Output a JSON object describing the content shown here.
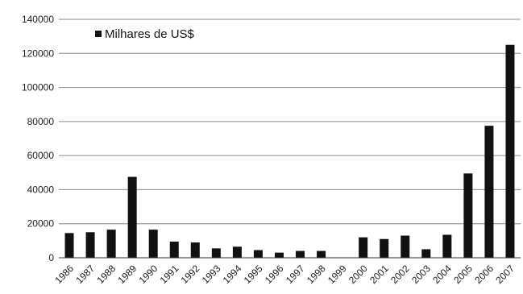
{
  "chart_data": {
    "type": "bar",
    "categories": [
      "1986",
      "1987",
      "1988",
      "1989",
      "1990",
      "1991",
      "1992",
      "1993",
      "1994",
      "1995",
      "1996",
      "1997",
      "1998",
      "1999",
      "2000",
      "2001",
      "2002",
      "2003",
      "2004",
      "2005",
      "2006",
      "2007"
    ],
    "series": [
      {
        "name": "Milhares de US$",
        "values": [
          14500,
          15000,
          16500,
          47500,
          16500,
          9500,
          9000,
          5500,
          6500,
          4500,
          3000,
          4000,
          4000,
          0,
          12000,
          11000,
          13000,
          5000,
          13500,
          49500,
          77500,
          125000
        ]
      }
    ],
    "ylim": [
      0,
      140000
    ],
    "y_ticks": [
      "0",
      "20000",
      "40000",
      "60000",
      "80000",
      "100000",
      "120000",
      "140000"
    ],
    "grid": true,
    "legend_position": "top-left",
    "bar_color": "#111111"
  }
}
